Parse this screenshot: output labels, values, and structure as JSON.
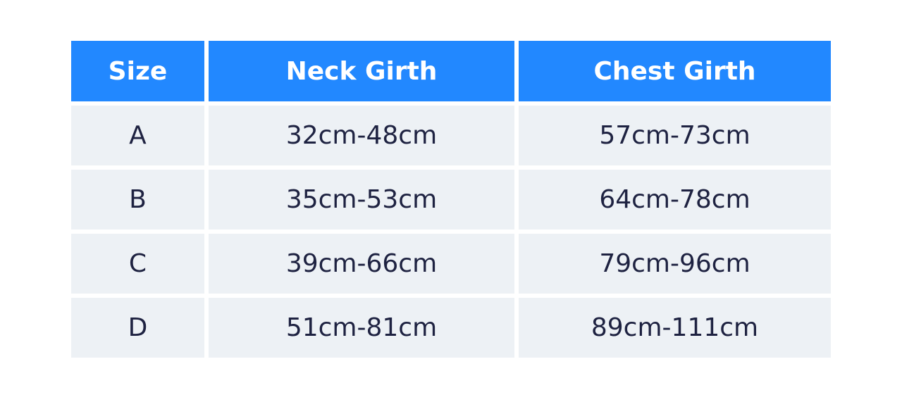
{
  "table": {
    "headers": [
      "Size",
      "Neck Girth",
      "Chest Girth"
    ],
    "rows": [
      [
        "A",
        "32cm-48cm",
        "57cm-73cm"
      ],
      [
        "B",
        "35cm-53cm",
        "64cm-78cm"
      ],
      [
        "C",
        "39cm-66cm",
        "79cm-96cm"
      ],
      [
        "D",
        "51cm-81cm",
        "89cm-111cm"
      ]
    ],
    "colors": {
      "header_bg": "#2288ff",
      "row_bg": "#edf1f5",
      "text": "#1e2241"
    }
  }
}
